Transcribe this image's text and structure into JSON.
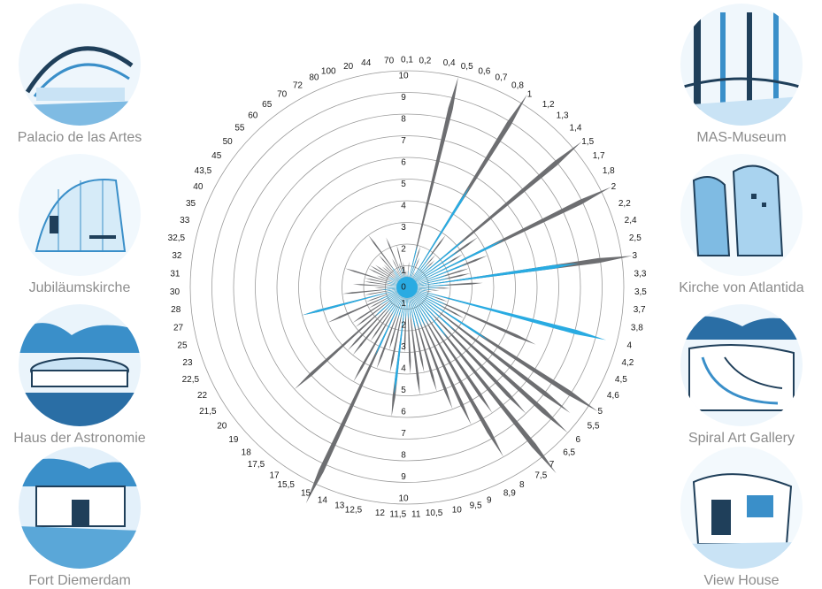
{
  "photos_left": [
    {
      "label": "Palacio de las Artes",
      "icon": "opera-house-sketch-icon"
    },
    {
      "label": "Jubiläumskirche",
      "icon": "church-interior-sketch-icon"
    },
    {
      "label": "Haus der Astronomie",
      "icon": "observatory-sketch-icon"
    },
    {
      "label": "Fort Diemerdam",
      "icon": "fort-sketch-icon"
    }
  ],
  "photos_right": [
    {
      "label": "MAS-Museum",
      "icon": "museum-sketch-icon"
    },
    {
      "label": "Kirche von Atlantida",
      "icon": "atlantida-church-sketch-icon"
    },
    {
      "label": "Spiral Art Gallery",
      "icon": "spiral-gallery-sketch-icon"
    },
    {
      "label": "View House",
      "icon": "view-house-sketch-icon"
    }
  ],
  "colors": {
    "series_a": "#6d6e71",
    "series_b": "#29abe2",
    "grid": "#9a9a9a",
    "photo_tint": "#3a8fc9"
  },
  "chart_data": {
    "type": "radar",
    "subtype": "angular-spikes",
    "rmax": 10,
    "ring_ticks": [
      1,
      2,
      3,
      4,
      5,
      6,
      7,
      8,
      9,
      10
    ],
    "upper_scale_labels": [
      "1",
      "2",
      "3",
      "4",
      "5",
      "6",
      "7",
      "8",
      "9",
      "10"
    ],
    "lower_scale_labels": [
      "1",
      "2",
      "3",
      "4",
      "5",
      "6",
      "7",
      "8",
      "9",
      "10"
    ],
    "center_label": "0",
    "categories": [
      "0,1",
      "0,2",
      "0,4",
      "0,5",
      "0,6",
      "0,7",
      "0,8",
      "1",
      "1,2",
      "1,3",
      "1,4",
      "1,5",
      "1,7",
      "1,8",
      "2",
      "2,2",
      "2,4",
      "2,5",
      "3",
      "3,3",
      "3,5",
      "3,7",
      "3,8",
      "4",
      "4,2",
      "4,5",
      "4,6",
      "5",
      "5,5",
      "6",
      "6,5",
      "7",
      "7,5",
      "8",
      "8,9",
      "9",
      "9,5",
      "10",
      "10,5",
      "11",
      "11,5",
      "12",
      "12,5",
      "13",
      "14",
      "15",
      "15,5",
      "17",
      "17,5",
      "18",
      "19",
      "20",
      "21,5",
      "22",
      "22,5",
      "23",
      "25",
      "27",
      "28",
      "30",
      "31",
      "32",
      "32,5",
      "33",
      "35",
      "40",
      "43,5",
      "45",
      "50",
      "55",
      "60",
      "65",
      "70",
      "72",
      "80",
      "100",
      "20",
      "44",
      "70"
    ],
    "series": [
      {
        "values": [
          0.8,
          1.2,
          0.6,
          10,
          2,
          1.5,
          0.8,
          10.5,
          3,
          2,
          1.8,
          10.5,
          4,
          3,
          10.5,
          4,
          3,
          3,
          10.5,
          3.5,
          2,
          1.5,
          1.2,
          3.5,
          2,
          6.5,
          3,
          10.5,
          9.5,
          10,
          8,
          11,
          7,
          9,
          7,
          6,
          5,
          4,
          5,
          4,
          3,
          6,
          4,
          3,
          4,
          11,
          5,
          3,
          4,
          4,
          7,
          3,
          3,
          2,
          4,
          2,
          5,
          2,
          3,
          1.5,
          2.5,
          2,
          2,
          3,
          1.5,
          2,
          2,
          1.8,
          1.5,
          1.5,
          2,
          3,
          1,
          1.5,
          2.5,
          1.2,
          2,
          1.2,
          0.8
        ]
      },
      {
        "values": [
          0.6,
          0.8,
          0.5,
          2,
          1.5,
          1,
          0.6,
          5.5,
          2,
          1.5,
          1.5,
          3.5,
          3,
          2.5,
          5,
          3,
          2,
          2,
          8,
          2,
          1.5,
          1.2,
          1,
          9.5,
          1.5,
          2,
          2,
          4.5,
          2,
          3,
          2,
          3,
          2,
          2,
          2,
          2,
          2,
          2,
          1.5,
          1.5,
          1.5,
          5,
          1.5,
          1.5,
          1.5,
          3.5,
          1.5,
          1.5,
          1.5,
          1.5,
          2,
          1.2,
          1.5,
          1.2,
          1.5,
          1,
          5,
          1,
          1.2,
          1,
          1,
          0.8,
          1,
          1,
          0.8,
          1,
          1,
          0.8,
          0.8,
          0.8,
          1,
          1.2,
          0.6,
          0.8,
          1,
          0.6,
          1,
          0.6,
          0.6
        ]
      }
    ]
  }
}
